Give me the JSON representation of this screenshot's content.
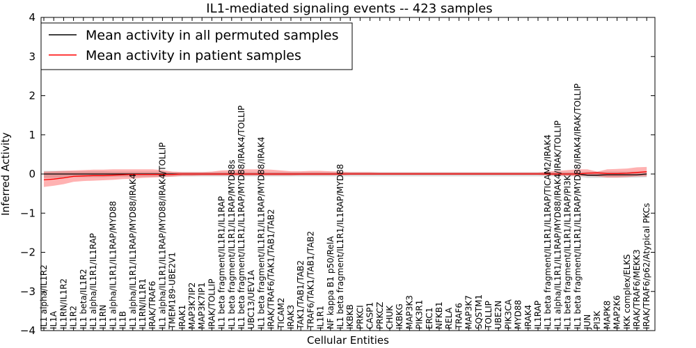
{
  "chart_data": {
    "type": "line",
    "title": "IL1-mediated signaling events -- 423 samples",
    "xlabel": "Cellular Entities",
    "ylabel": "Inferred Activity",
    "ylim": [
      -4,
      4
    ],
    "yticks": [
      -4,
      -3,
      -2,
      -1,
      0,
      1,
      2,
      3,
      4
    ],
    "ytick_labels": [
      "−4",
      "−3",
      "−2",
      "−1",
      "0",
      "1",
      "2",
      "3",
      "4"
    ],
    "grid": false,
    "legend_position": "top-left",
    "categories": [
      "IL1 alpha/IL1R2",
      "IL1A",
      "IL1RN/IL1R2",
      "IL1R2",
      "IL1 beta/IL1R2",
      "IL1 alpha/IL1R1/IL1RAP",
      "IL1RN",
      "IL1 alpha/IL1R1/IL1RAP/MYD88",
      "IL1B",
      "IL1 alpha/IL1R1/IL1RAP/MYD88/IRAK4",
      "IL1RN/IL1R1",
      "IRAK/TRAF6",
      "IL1 alpha/IL1R1/IL1RAP/MYD88/IRAK4/TOLLIP",
      "TMEM189-UBE2V1",
      "IRAK1",
      "MAP3K7IP2",
      "MAP3K7IP1",
      "IRAK/TOLLIP",
      "IL1 beta fragment/IL1R1/IL1RAP",
      "IL1 beta fragment/IL1R1/IL1RAP/MYD88s",
      "IL1 beta fragment/IL1R1/IL1RAP/MYD88/IRAK4/TOLLIP",
      "UBC13/UEV1A",
      "IL1 beta fragment/IL1R1/IL1RAP/MYD88/IRAK4",
      "IRAK/TRAF6/TAK1/TAB1/TAB2",
      "TICAM2",
      "IRAK3",
      "TAK1/TAB1/TAB2",
      "TRAF6/TAK1/TAB1/TAB2",
      "IL1R1",
      "NF kappa B1 p50/RelA",
      "IL1 beta fragment/IL1R1/IL1RAP/MYD88",
      "IKBKB",
      "PRKCI",
      "CASP1",
      "PRKCZ",
      "CHUK",
      "IKBKG",
      "MAP3K3",
      "PIK3R1",
      "ERC1",
      "NFKB1",
      "RELA",
      "TRAF6",
      "MAP3K7",
      "SQSTM1",
      "TOLLIP",
      "UBE2N",
      "PIK3CA",
      "MYD88",
      "IRAK4",
      "IL1RAP",
      "IL1 beta fragment/IL1R1/IL1RAP/TICAM2/IRAK4",
      "IL1 alpha/IL1R1/IL1RAP/MYD88/IRAK4/IRAK/TOLLIP",
      "IL1 beta fragment/IL1R1/IL1RAP/PI3K",
      "IL1 beta fragment/IL1R1/IL1RAP/MYD88/IRAK4/IRAK/TOLLIP",
      "JUN",
      "PI3K",
      "MAPK8",
      "MAP2K6",
      "IKK complex/ELKS",
      "IRAK/TRAF6/MEKK3",
      "IRAK/TRAF6/p62/Atypical PKCs"
    ],
    "series": [
      {
        "name": "Mean activity in all permuted samples",
        "color": "#000000",
        "values": [
          0.0,
          0.0,
          0.0,
          0.0,
          0.0,
          0.0,
          0.0,
          0.0,
          0.0,
          0.0,
          0.0,
          0.0,
          0.0,
          0.0,
          0.0,
          0.0,
          0.0,
          0.0,
          0.0,
          0.0,
          0.0,
          0.0,
          0.0,
          0.0,
          0.0,
          0.0,
          0.0,
          0.0,
          0.0,
          0.0,
          0.0,
          0.0,
          0.0,
          0.0,
          0.0,
          0.0,
          0.0,
          0.0,
          0.0,
          0.0,
          0.0,
          0.0,
          0.0,
          0.0,
          0.0,
          0.0,
          0.0,
          0.0,
          0.0,
          0.0,
          0.0,
          0.0,
          0.0,
          0.0,
          0.0,
          -0.03,
          -0.03,
          -0.02,
          -0.02,
          -0.02,
          -0.02,
          0.0
        ],
        "band_lower": [
          -0.1,
          -0.1,
          -0.1,
          -0.08,
          -0.08,
          -0.08,
          -0.08,
          -0.07,
          -0.07,
          -0.07,
          -0.07,
          -0.07,
          -0.07,
          -0.06,
          -0.06,
          -0.06,
          -0.06,
          -0.06,
          -0.06,
          -0.06,
          -0.06,
          -0.06,
          -0.06,
          -0.06,
          -0.06,
          -0.06,
          -0.06,
          -0.06,
          -0.06,
          -0.06,
          -0.06,
          -0.06,
          -0.06,
          -0.06,
          -0.06,
          -0.06,
          -0.06,
          -0.06,
          -0.06,
          -0.06,
          -0.06,
          -0.06,
          -0.06,
          -0.06,
          -0.06,
          -0.06,
          -0.06,
          -0.06,
          -0.06,
          -0.06,
          -0.06,
          -0.06,
          -0.06,
          -0.06,
          -0.06,
          -0.1,
          -0.1,
          -0.09,
          -0.09,
          -0.09,
          -0.09,
          -0.08
        ],
        "band_upper": [
          0.08,
          0.08,
          0.08,
          0.07,
          0.07,
          0.07,
          0.07,
          0.06,
          0.06,
          0.06,
          0.06,
          0.06,
          0.06,
          0.05,
          0.05,
          0.05,
          0.05,
          0.05,
          0.05,
          0.05,
          0.05,
          0.05,
          0.05,
          0.05,
          0.05,
          0.05,
          0.05,
          0.05,
          0.05,
          0.05,
          0.05,
          0.05,
          0.05,
          0.05,
          0.05,
          0.05,
          0.05,
          0.05,
          0.05,
          0.05,
          0.05,
          0.05,
          0.05,
          0.05,
          0.05,
          0.05,
          0.05,
          0.05,
          0.05,
          0.05,
          0.05,
          0.05,
          0.05,
          0.05,
          0.05,
          0.06,
          0.06,
          0.06,
          0.06,
          0.06,
          0.06,
          0.07
        ]
      },
      {
        "name": "Mean activity in patient samples",
        "color": "#ff0000",
        "values": [
          -0.15,
          -0.13,
          -0.1,
          -0.06,
          -0.05,
          -0.04,
          -0.04,
          -0.03,
          -0.02,
          -0.01,
          -0.01,
          -0.01,
          -0.01,
          -0.01,
          0.0,
          0.0,
          0.0,
          0.0,
          0.0,
          0.0,
          0.0,
          0.0,
          0.0,
          0.0,
          0.0,
          0.0,
          0.0,
          0.0,
          0.0,
          0.0,
          0.0,
          0.0,
          0.0,
          0.0,
          0.0,
          0.0,
          0.0,
          0.0,
          0.0,
          0.0,
          0.0,
          0.0,
          0.0,
          0.0,
          0.0,
          0.0,
          0.0,
          0.0,
          0.0,
          0.0,
          0.0,
          0.0,
          0.0,
          0.0,
          0.0,
          0.02,
          0.03,
          0.01,
          0.01,
          0.02,
          0.04,
          0.06
        ],
        "band_lower": [
          -0.33,
          -0.3,
          -0.26,
          -0.2,
          -0.18,
          -0.17,
          -0.16,
          -0.15,
          -0.13,
          -0.12,
          -0.1,
          -0.09,
          -0.08,
          -0.07,
          -0.05,
          -0.05,
          -0.04,
          -0.04,
          -0.04,
          -0.04,
          -0.04,
          -0.04,
          -0.04,
          -0.04,
          -0.04,
          -0.04,
          -0.03,
          -0.03,
          -0.03,
          -0.03,
          -0.03,
          -0.02,
          -0.02,
          -0.02,
          -0.02,
          -0.02,
          -0.02,
          -0.02,
          -0.02,
          -0.02,
          -0.02,
          -0.02,
          -0.02,
          -0.02,
          -0.02,
          -0.02,
          -0.02,
          -0.02,
          -0.02,
          -0.02,
          -0.02,
          -0.03,
          -0.04,
          -0.05,
          -0.05,
          -0.05,
          -0.06,
          -0.09,
          -0.09,
          -0.08,
          -0.06,
          -0.06
        ],
        "band_upper": [
          0.06,
          0.07,
          0.08,
          0.09,
          0.1,
          0.11,
          0.11,
          0.12,
          0.12,
          0.12,
          0.12,
          0.12,
          0.1,
          0.06,
          0.05,
          0.05,
          0.05,
          0.06,
          0.09,
          0.1,
          0.12,
          0.12,
          0.12,
          0.11,
          0.09,
          0.07,
          0.07,
          0.08,
          0.08,
          0.07,
          0.06,
          0.05,
          0.05,
          0.05,
          0.04,
          0.04,
          0.04,
          0.04,
          0.04,
          0.04,
          0.04,
          0.04,
          0.04,
          0.04,
          0.04,
          0.04,
          0.04,
          0.04,
          0.04,
          0.04,
          0.04,
          0.06,
          0.08,
          0.1,
          0.12,
          0.12,
          0.06,
          0.12,
          0.13,
          0.14,
          0.17,
          0.18
        ]
      }
    ]
  }
}
